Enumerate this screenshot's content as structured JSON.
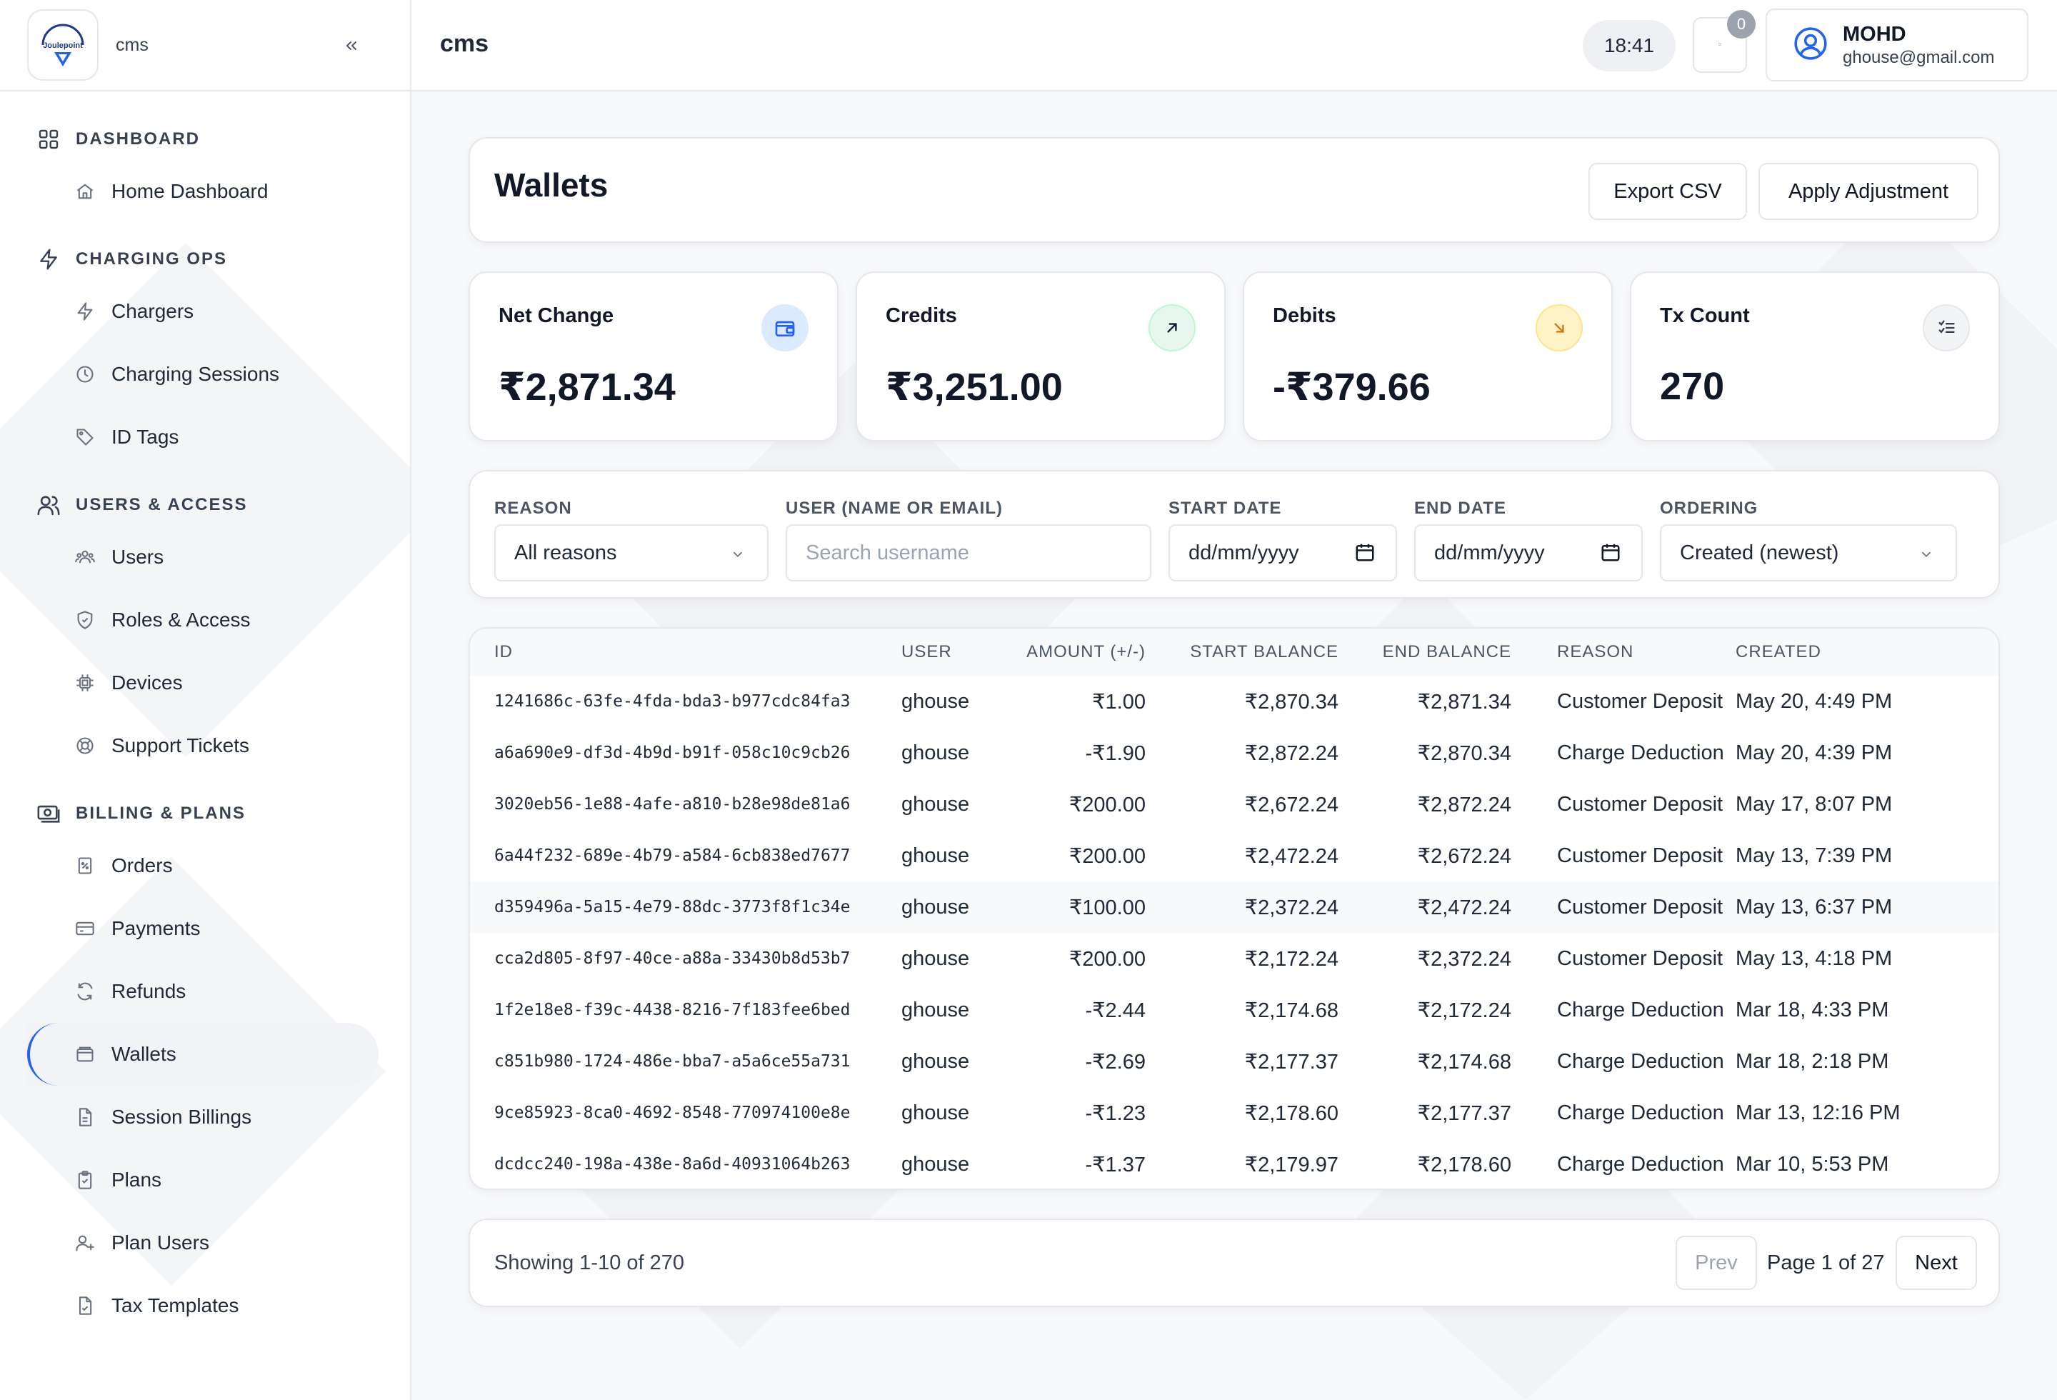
{
  "brand": {
    "logo_text": "Joulepoint",
    "app_name": "cms"
  },
  "topbar": {
    "title": "cms",
    "time": "18:41",
    "notifications_count": "0",
    "user": {
      "name": "MOHD",
      "email": "ghouse@gmail.com"
    }
  },
  "sidebar": {
    "sections": [
      {
        "label": "DASHBOARD",
        "icon": "grid-icon",
        "items": [
          {
            "label": "Home Dashboard",
            "icon": "home-icon"
          }
        ]
      },
      {
        "label": "CHARGING OPS",
        "icon": "bolt-icon",
        "items": [
          {
            "label": "Chargers",
            "icon": "bolt-icon"
          },
          {
            "label": "Charging Sessions",
            "icon": "clock-icon"
          },
          {
            "label": "ID Tags",
            "icon": "tag-icon"
          }
        ]
      },
      {
        "label": "USERS & ACCESS",
        "icon": "users-icon",
        "items": [
          {
            "label": "Users",
            "icon": "users-icon"
          },
          {
            "label": "Roles & Access",
            "icon": "shield-icon"
          },
          {
            "label": "Devices",
            "icon": "chip-icon"
          },
          {
            "label": "Support Tickets",
            "icon": "lifebuoy-icon"
          }
        ]
      },
      {
        "label": "BILLING & PLANS",
        "icon": "money-icon",
        "items": [
          {
            "label": "Orders",
            "icon": "receipt-icon"
          },
          {
            "label": "Payments",
            "icon": "card-icon"
          },
          {
            "label": "Refunds",
            "icon": "refresh-icon"
          },
          {
            "label": "Wallets",
            "icon": "wallet-icon",
            "active": true
          },
          {
            "label": "Session Billings",
            "icon": "file-icon"
          },
          {
            "label": "Plans",
            "icon": "clipboard-icon"
          },
          {
            "label": "Plan Users",
            "icon": "user-plus-icon"
          },
          {
            "label": "Tax Templates",
            "icon": "file-check-icon"
          }
        ]
      }
    ]
  },
  "page": {
    "title": "Wallets",
    "export_label": "Export CSV",
    "adjust_label": "Apply Adjustment"
  },
  "stats": [
    {
      "title": "Net Change",
      "value": "₹2,871.34",
      "icon": "wallet-icon",
      "icon_bg": "#dbeafe",
      "icon_color": "#2563eb"
    },
    {
      "title": "Credits",
      "value": "₹3,251.00",
      "icon": "arrow-up-right-icon",
      "icon_bg": "#dcfce7",
      "icon_color": "#111827"
    },
    {
      "title": "Debits",
      "value": "-₹379.66",
      "icon": "arrow-down-right-icon",
      "icon_bg": "#fef3c7",
      "icon_color": "#d97706"
    },
    {
      "title": "Tx Count",
      "value": "270",
      "icon": "list-check-icon",
      "icon_bg": "#f3f4f6",
      "icon_color": "#374151"
    }
  ],
  "filters": {
    "reason": {
      "label": "REASON",
      "value": "All reasons"
    },
    "user": {
      "label": "USER (NAME OR EMAIL)",
      "placeholder": "Search username"
    },
    "start_date": {
      "label": "START DATE",
      "value": "dd/mm/yyyy"
    },
    "end_date": {
      "label": "END DATE",
      "value": "dd/mm/yyyy"
    },
    "ordering": {
      "label": "ORDERING",
      "value": "Created (newest)"
    }
  },
  "table": {
    "columns": [
      "ID",
      "USER",
      "AMOUNT (+/-)",
      "START BALANCE",
      "END BALANCE",
      "REASON",
      "CREATED"
    ],
    "rows": [
      [
        "1241686c-63fe-4fda-bda3-b977cdc84fa3",
        "ghouse",
        "₹1.00",
        "₹2,870.34",
        "₹2,871.34",
        "Customer Deposit",
        "May 20, 4:49 PM"
      ],
      [
        "a6a690e9-df3d-4b9d-b91f-058c10c9cb26",
        "ghouse",
        "-₹1.90",
        "₹2,872.24",
        "₹2,870.34",
        "Charge Deduction",
        "May 20, 4:39 PM"
      ],
      [
        "3020eb56-1e88-4afe-a810-b28e98de81a6",
        "ghouse",
        "₹200.00",
        "₹2,672.24",
        "₹2,872.24",
        "Customer Deposit",
        "May 17, 8:07 PM"
      ],
      [
        "6a44f232-689e-4b79-a584-6cb838ed7677",
        "ghouse",
        "₹200.00",
        "₹2,472.24",
        "₹2,672.24",
        "Customer Deposit",
        "May 13, 7:39 PM"
      ],
      [
        "d359496a-5a15-4e79-88dc-3773f8f1c34e",
        "ghouse",
        "₹100.00",
        "₹2,372.24",
        "₹2,472.24",
        "Customer Deposit",
        "May 13, 6:37 PM"
      ],
      [
        "cca2d805-8f97-40ce-a88a-33430b8d53b7",
        "ghouse",
        "₹200.00",
        "₹2,172.24",
        "₹2,372.24",
        "Customer Deposit",
        "May 13, 4:18 PM"
      ],
      [
        "1f2e18e8-f39c-4438-8216-7f183fee6bed",
        "ghouse",
        "-₹2.44",
        "₹2,174.68",
        "₹2,172.24",
        "Charge Deduction",
        "Mar 18, 4:33 PM"
      ],
      [
        "c851b980-1724-486e-bba7-a5a6ce55a731",
        "ghouse",
        "-₹2.69",
        "₹2,177.37",
        "₹2,174.68",
        "Charge Deduction",
        "Mar 18, 2:18 PM"
      ],
      [
        "9ce85923-8ca0-4692-8548-770974100e8e",
        "ghouse",
        "-₹1.23",
        "₹2,178.60",
        "₹2,177.37",
        "Charge Deduction",
        "Mar 13, 12:16 PM"
      ],
      [
        "dcdcc240-198a-438e-8a6d-40931064b263",
        "ghouse",
        "-₹1.37",
        "₹2,179.97",
        "₹2,178.60",
        "Charge Deduction",
        "Mar 10, 5:53 PM"
      ]
    ],
    "highlighted_row": 4
  },
  "pagination": {
    "info": "Showing 1-10 of 270",
    "prev_label": "Prev",
    "page_label": "Page 1 of 27",
    "next_label": "Next"
  }
}
